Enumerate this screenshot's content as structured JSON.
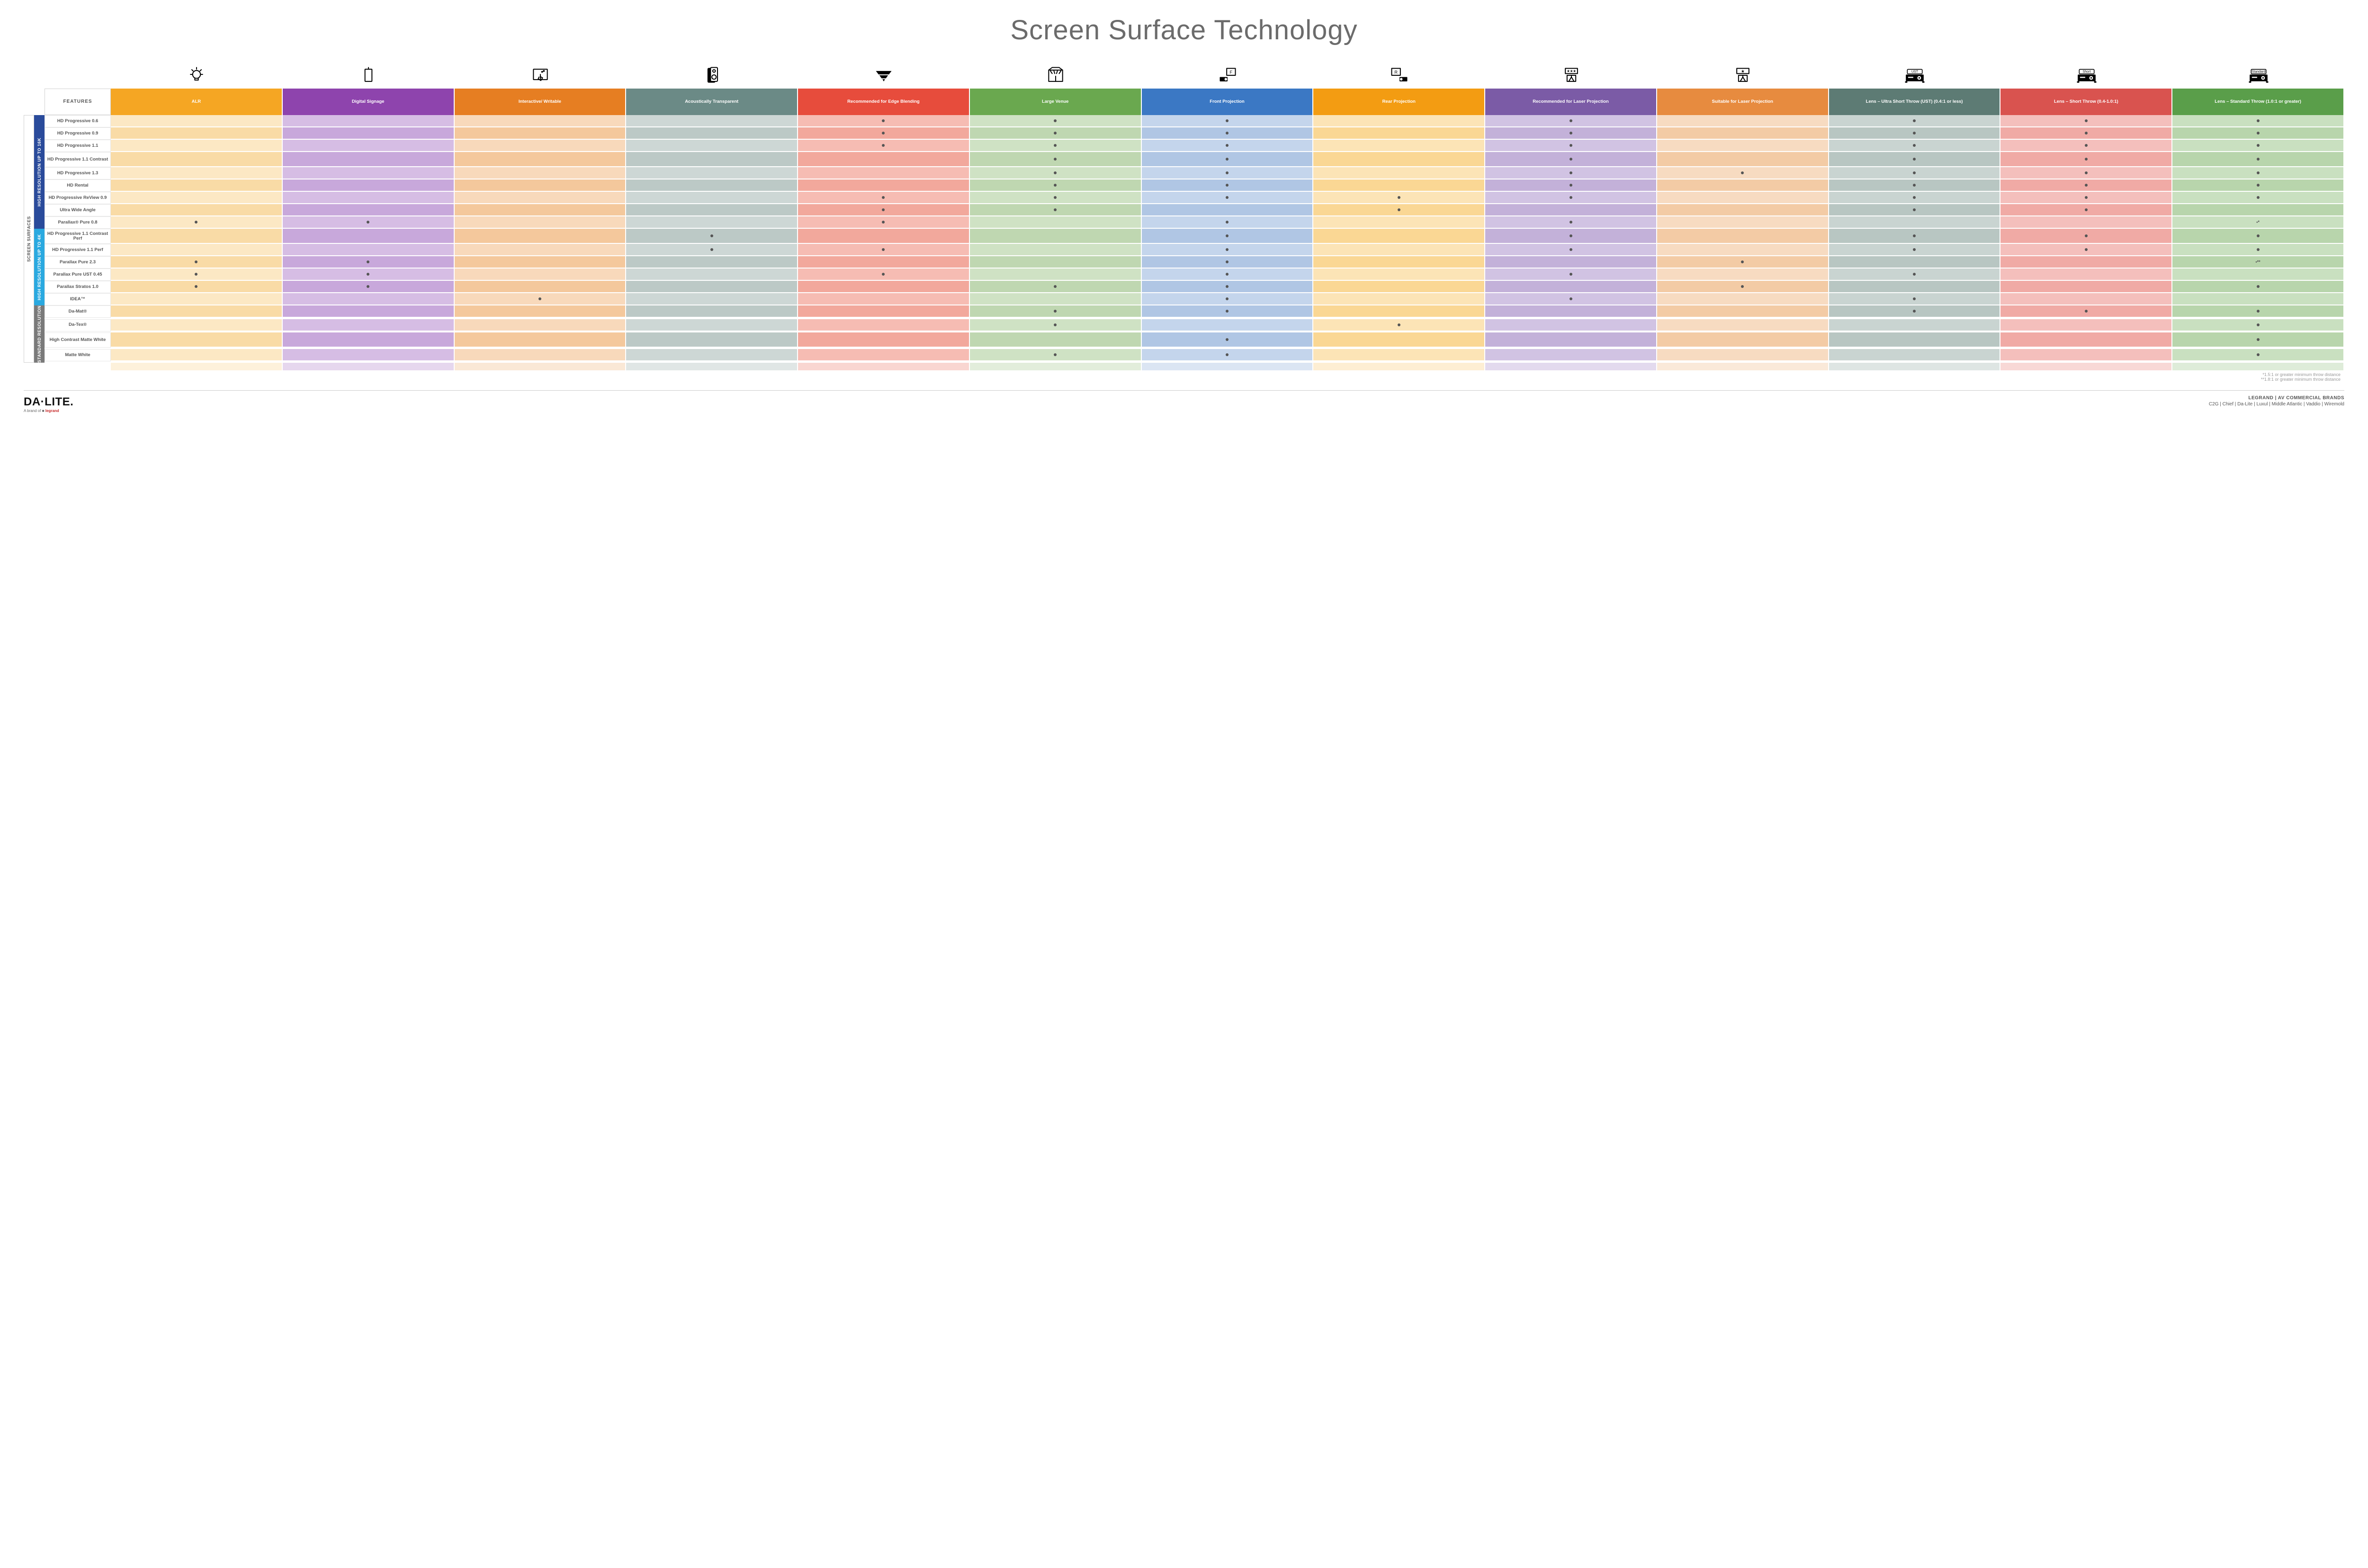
{
  "title": "Screen Surface Technology",
  "featuresLabel": "FEATURES",
  "outerLabel": "SCREEN SURFACES",
  "groups": [
    {
      "label": "HIGH RESOLUTION UP TO 16K",
      "bg": "#2a4b9b",
      "rows": 9
    },
    {
      "label": "HIGH RESOLUTION UP TO 4K",
      "bg": "#2aa9e0",
      "rows": 6
    },
    {
      "label": "STANDARD RESOLUTION",
      "bg": "#7a7a7a",
      "rows": 4
    }
  ],
  "columns": [
    {
      "label": "ALR",
      "hbg": "#f5a623",
      "tint": "#fce8c4",
      "tintAlt": "#f9dba6",
      "icon": "bulb"
    },
    {
      "label": "Digital Signage",
      "hbg": "#8e44ad",
      "tint": "#d6bde4",
      "tintAlt": "#c8a8db",
      "icon": "signage"
    },
    {
      "label": "Interactive/ Writable",
      "hbg": "#e67e22",
      "tint": "#f8d9bb",
      "tintAlt": "#f4c89c",
      "icon": "touch"
    },
    {
      "label": "Acoustically Transparent",
      "hbg": "#6b8a86",
      "tint": "#cdd7d5",
      "tintAlt": "#bcc9c6",
      "icon": "speaker"
    },
    {
      "label": "Recommended for Edge Blending",
      "hbg": "#e74c3c",
      "tint": "#f6bcb3",
      "tintAlt": "#f2a89c",
      "icon": "blend"
    },
    {
      "label": "Large Venue",
      "hbg": "#6aa84f",
      "tint": "#cfe2c4",
      "tintAlt": "#bfd7b1",
      "icon": "venue"
    },
    {
      "label": "Front Projection",
      "hbg": "#3b78c4",
      "tint": "#c4d5ec",
      "tintAlt": "#b0c6e4",
      "icon": "front"
    },
    {
      "label": "Rear Projection",
      "hbg": "#f39c12",
      "tint": "#fce4b6",
      "tintAlt": "#fad794",
      "icon": "rear"
    },
    {
      "label": "Recommended for Laser Projection",
      "hbg": "#7b5ba6",
      "tint": "#d1c3e3",
      "tintAlt": "#c3b1d9",
      "icon": "laser-rec"
    },
    {
      "label": "Suitable for Laser Projection",
      "hbg": "#e78b3f",
      "tint": "#f7dbc1",
      "tintAlt": "#f3cba5",
      "icon": "laser-suit"
    },
    {
      "label": "Lens – Ultra Short Throw (UST) (0.4:1 or less)",
      "hbg": "#5d7b74",
      "tint": "#c9d4d1",
      "tintAlt": "#b8c6c2",
      "icon": "ust"
    },
    {
      "label": "Lens – Short Throw (0.4-1.0:1)",
      "hbg": "#d9534f",
      "tint": "#f4bfbc",
      "tintAlt": "#f0aaa5",
      "icon": "short"
    },
    {
      "label": "Lens – Standard Throw (1.0:1 or greater)",
      "hbg": "#5a9e4a",
      "tint": "#c9e0c0",
      "tintAlt": "#b8d5ac",
      "icon": "standard"
    }
  ],
  "rows": [
    {
      "label": "HD Progressive 0.6",
      "dots": [
        0,
        0,
        0,
        0,
        1,
        1,
        1,
        0,
        1,
        0,
        1,
        1,
        1
      ]
    },
    {
      "label": "HD Progressive 0.9",
      "dots": [
        0,
        0,
        0,
        0,
        1,
        1,
        1,
        0,
        1,
        0,
        1,
        1,
        1
      ]
    },
    {
      "label": "HD Progressive 1.1",
      "dots": [
        0,
        0,
        0,
        0,
        1,
        1,
        1,
        0,
        1,
        0,
        1,
        1,
        1
      ]
    },
    {
      "label": "HD Progressive 1.1 Contrast",
      "dots": [
        0,
        0,
        0,
        0,
        0,
        1,
        1,
        0,
        1,
        0,
        1,
        1,
        1
      ],
      "tall": true
    },
    {
      "label": "HD Progressive 1.3",
      "dots": [
        0,
        0,
        0,
        0,
        0,
        1,
        1,
        0,
        1,
        1,
        1,
        1,
        1
      ]
    },
    {
      "label": "HD Rental",
      "dots": [
        0,
        0,
        0,
        0,
        0,
        1,
        1,
        0,
        1,
        0,
        1,
        1,
        1
      ]
    },
    {
      "label": "HD Progressive ReView 0.9",
      "dots": [
        0,
        0,
        0,
        0,
        1,
        1,
        1,
        1,
        1,
        0,
        1,
        1,
        1
      ]
    },
    {
      "label": "Ultra Wide Angle",
      "dots": [
        0,
        0,
        0,
        0,
        1,
        1,
        0,
        1,
        0,
        0,
        1,
        1,
        0
      ]
    },
    {
      "label": "Parallax® Pure 0.8",
      "dots": [
        1,
        1,
        0,
        0,
        1,
        0,
        1,
        0,
        1,
        0,
        0,
        0,
        "•*"
      ]
    },
    {
      "label": "HD Progressive 1.1 Contrast Perf",
      "dots": [
        0,
        0,
        0,
        1,
        0,
        0,
        1,
        0,
        1,
        0,
        1,
        1,
        1
      ],
      "tall": true
    },
    {
      "label": "HD Progressive 1.1 Perf",
      "dots": [
        0,
        0,
        0,
        1,
        1,
        0,
        1,
        0,
        1,
        0,
        1,
        1,
        1
      ]
    },
    {
      "label": "Parallax Pure 2.3",
      "dots": [
        1,
        1,
        0,
        0,
        0,
        0,
        1,
        0,
        0,
        1,
        0,
        0,
        "•**"
      ]
    },
    {
      "label": "Parallax Pure UST 0.45",
      "dots": [
        1,
        1,
        0,
        0,
        1,
        0,
        1,
        0,
        1,
        0,
        1,
        0,
        0
      ]
    },
    {
      "label": "Parallax Stratos 1.0",
      "dots": [
        1,
        1,
        0,
        0,
        0,
        1,
        1,
        0,
        0,
        1,
        0,
        0,
        1
      ]
    },
    {
      "label": "IDEA™",
      "dots": [
        0,
        0,
        1,
        0,
        0,
        0,
        1,
        0,
        1,
        0,
        1,
        0,
        0
      ]
    },
    {
      "label": "Da-Mat®",
      "dots": [
        0,
        0,
        0,
        0,
        0,
        1,
        1,
        0,
        0,
        0,
        1,
        1,
        1
      ]
    },
    {
      "label": "Da-Tex®",
      "dots": [
        0,
        0,
        0,
        0,
        0,
        1,
        0,
        1,
        0,
        0,
        0,
        0,
        1
      ]
    },
    {
      "label": "High Contrast Matte White",
      "dots": [
        0,
        0,
        0,
        0,
        0,
        0,
        1,
        0,
        0,
        0,
        0,
        0,
        1
      ],
      "tall": true
    },
    {
      "label": "Matte White",
      "dots": [
        0,
        0,
        0,
        0,
        0,
        1,
        1,
        0,
        0,
        0,
        0,
        0,
        1
      ]
    }
  ],
  "footnotes": [
    "*1.5:1 or greater minimum throw distance",
    "**1.8:1 or greater minimum throw distance"
  ],
  "footer": {
    "logoMain": "DA·LITE.",
    "logoSubPrefix": "A brand of ",
    "logoSubBrand": "legrand",
    "brandsLine1": "LEGRAND | AV COMMERCIAL BRANDS",
    "brandsLine2": "C2G  |  Chief  |  Da-Lite  |  Luxul  |  Middle Atlantic  |  Vaddio  |  Wiremold"
  }
}
